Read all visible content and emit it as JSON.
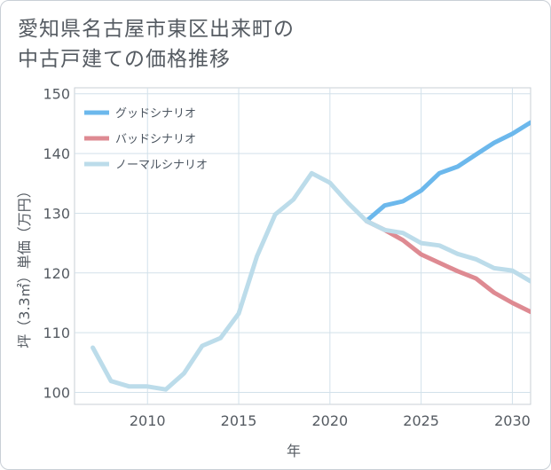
{
  "title": {
    "line1": "愛知県名古屋市東区出来町の",
    "line2": "中古戸建ての価格推移"
  },
  "colors": {
    "good": "#6cb8ec",
    "bad": "#de8a92",
    "normal": "#bcdcea",
    "grid": "#d2e1ea",
    "frame": "#c9cfd6",
    "text": "#555b62"
  },
  "chart_data": {
    "type": "line",
    "title": "愛知県名古屋市東区出来町の中古戸建ての価格推移",
    "xlabel": "年",
    "ylabel": "坪（3.3㎡）単価（万円）",
    "xlim": [
      2006,
      2031
    ],
    "ylim": [
      98,
      151
    ],
    "xticks": [
      2010,
      2015,
      2020,
      2025,
      2030
    ],
    "yticks": [
      100,
      110,
      120,
      130,
      140,
      150
    ],
    "grid": true,
    "legend_position": "top-left",
    "series": [
      {
        "name": "グッドシナリオ",
        "color_key": "good",
        "x": [
          2022,
          2023,
          2024,
          2025,
          2026,
          2027,
          2028,
          2029,
          2030,
          2031
        ],
        "y": [
          128.7,
          131.3,
          132.0,
          133.8,
          136.7,
          137.8,
          139.8,
          141.8,
          143.3,
          145.2
        ]
      },
      {
        "name": "バッドシナリオ",
        "color_key": "bad",
        "x": [
          2022,
          2023,
          2024,
          2025,
          2026,
          2027,
          2028,
          2029,
          2030,
          2031
        ],
        "y": [
          128.7,
          127.2,
          125.5,
          123.1,
          121.7,
          120.3,
          119.1,
          116.7,
          115.0,
          113.5
        ]
      },
      {
        "name": "ノーマルシナリオ",
        "color_key": "normal",
        "x": [
          2007,
          2008,
          2009,
          2010,
          2011,
          2012,
          2013,
          2014,
          2015,
          2016,
          2017,
          2018,
          2019,
          2020,
          2021,
          2022,
          2023,
          2024,
          2025,
          2026,
          2027,
          2028,
          2029,
          2030,
          2031
        ],
        "y": [
          107.5,
          101.9,
          101.0,
          101.0,
          100.5,
          103.2,
          107.8,
          109.1,
          113.2,
          122.8,
          129.8,
          132.3,
          136.7,
          135.1,
          131.7,
          128.7,
          127.2,
          126.7,
          125.0,
          124.6,
          123.2,
          122.3,
          120.8,
          120.4,
          118.6
        ]
      }
    ]
  }
}
